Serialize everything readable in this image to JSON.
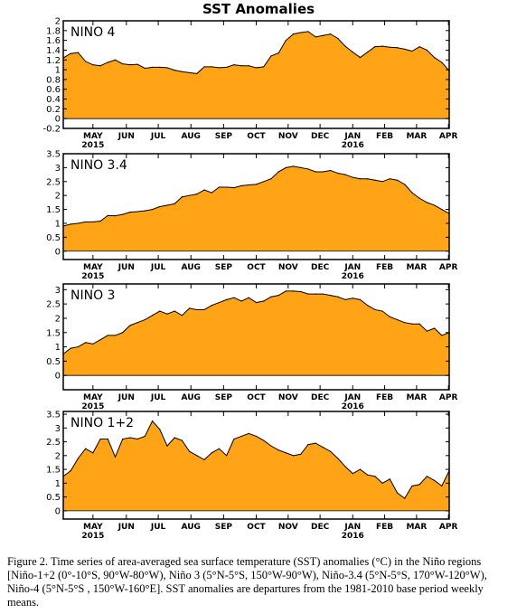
{
  "figure_title": "SST Anomalies",
  "caption": "Figure 2. Time series of area-averaged sea surface temperature (SST) anomalies (°C) in the Niño regions [Niño-1+2 (0°-10°S, 90°W-80°W), Niño 3 (5°N-5°S, 150°W-90°W), Niño-3.4 (5°N-5°S, 170°W-120°W), Niño-4 (5°N-5°S , 150°W-160°E]. SST anomalies are departures from the 1981-2010 base period weekly means.",
  "colors": {
    "fill": "#ffa317",
    "line": "#000000",
    "background": "#ffffff"
  },
  "chart_data": [
    {
      "type": "area",
      "region_label": "NINO 4",
      "ylim": [
        -0.2,
        2
      ],
      "yticks": [
        -0.2,
        0,
        0.2,
        0.4,
        0.6,
        0.8,
        1,
        1.2,
        1.4,
        1.6,
        1.8,
        2
      ],
      "ytick_labels": [
        "-0.2",
        "0",
        "0.2",
        "0.4",
        "0.6",
        "0.8",
        "1",
        "1.2",
        "1.4",
        "1.6",
        "1.8",
        "2"
      ],
      "xlim": [
        0,
        52
      ],
      "month_ticks": [
        {
          "x": 4,
          "label": "MAY",
          "year": "2015"
        },
        {
          "x": 8.5,
          "label": "JUN"
        },
        {
          "x": 12.8,
          "label": "JUL"
        },
        {
          "x": 17.2,
          "label": "AUG"
        },
        {
          "x": 21.6,
          "label": "SEP"
        },
        {
          "x": 26,
          "label": "OCT"
        },
        {
          "x": 30.3,
          "label": "NOV"
        },
        {
          "x": 34.6,
          "label": "DEC"
        },
        {
          "x": 39,
          "label": "JAN",
          "year": "2016"
        },
        {
          "x": 43.3,
          "label": "FEB"
        },
        {
          "x": 47.6,
          "label": "MAR"
        },
        {
          "x": 51.9,
          "label": "APR"
        }
      ],
      "x": [
        0,
        1,
        2,
        3,
        4,
        5,
        6,
        7,
        8,
        9,
        10,
        11,
        12,
        13,
        14,
        15,
        16,
        17,
        18,
        19,
        20,
        21,
        22,
        23,
        24,
        25,
        26,
        27,
        28,
        29,
        30,
        31,
        32,
        33,
        34,
        35,
        36,
        37,
        38,
        39,
        40,
        41,
        42,
        43,
        44,
        45,
        46,
        47,
        48,
        49,
        50,
        51,
        52
      ],
      "values": [
        1.24,
        1.33,
        1.35,
        1.17,
        1.1,
        1.08,
        1.15,
        1.2,
        1.12,
        1.1,
        1.11,
        1.03,
        1.05,
        1.05,
        1.04,
        0.99,
        0.96,
        0.94,
        0.92,
        1.06,
        1.06,
        1.04,
        1.05,
        1.1,
        1.08,
        1.08,
        1.04,
        1.06,
        1.28,
        1.34,
        1.6,
        1.73,
        1.76,
        1.78,
        1.67,
        1.7,
        1.73,
        1.64,
        1.48,
        1.36,
        1.25,
        1.36,
        1.47,
        1.48,
        1.46,
        1.45,
        1.42,
        1.38,
        1.47,
        1.4,
        1.25,
        1.15,
        0.98
      ]
    },
    {
      "type": "area",
      "region_label": "NINO 3.4",
      "ylim": [
        -0.3,
        3.5
      ],
      "yticks": [
        0,
        0.5,
        1,
        1.5,
        2,
        2.5,
        3,
        3.5
      ],
      "ytick_labels": [
        "0",
        "0.5",
        "1",
        "1.5",
        "2",
        "2.5",
        "3",
        "3.5"
      ],
      "xlim": [
        0,
        52
      ],
      "month_ticks": [
        {
          "x": 4,
          "label": "MAY",
          "year": "2015"
        },
        {
          "x": 8.5,
          "label": "JUN"
        },
        {
          "x": 12.8,
          "label": "JUL"
        },
        {
          "x": 17.2,
          "label": "AUG"
        },
        {
          "x": 21.6,
          "label": "SEP"
        },
        {
          "x": 26,
          "label": "OCT"
        },
        {
          "x": 30.3,
          "label": "NOV"
        },
        {
          "x": 34.6,
          "label": "DEC"
        },
        {
          "x": 39,
          "label": "JAN",
          "year": "2016"
        },
        {
          "x": 43.3,
          "label": "FEB"
        },
        {
          "x": 47.6,
          "label": "MAR"
        },
        {
          "x": 51.9,
          "label": "APR"
        }
      ],
      "x": [
        0,
        1,
        2,
        3,
        4,
        5,
        6,
        7,
        8,
        9,
        10,
        11,
        12,
        13,
        14,
        15,
        16,
        17,
        18,
        19,
        20,
        21,
        22,
        23,
        24,
        25,
        26,
        27,
        28,
        29,
        30,
        31,
        32,
        33,
        34,
        35,
        36,
        37,
        38,
        39,
        40,
        41,
        42,
        43,
        44,
        45,
        46,
        47,
        48,
        49,
        50,
        51,
        52
      ],
      "values": [
        0.9,
        0.97,
        1.0,
        1.05,
        1.05,
        1.08,
        1.28,
        1.27,
        1.32,
        1.4,
        1.42,
        1.45,
        1.5,
        1.6,
        1.65,
        1.7,
        1.95,
        2.0,
        2.05,
        2.2,
        2.1,
        2.3,
        2.3,
        2.28,
        2.35,
        2.38,
        2.4,
        2.5,
        2.6,
        2.85,
        3.0,
        3.05,
        3.0,
        2.95,
        2.85,
        2.85,
        2.9,
        2.8,
        2.75,
        2.65,
        2.6,
        2.6,
        2.55,
        2.5,
        2.6,
        2.55,
        2.4,
        2.1,
        1.9,
        1.75,
        1.65,
        1.5,
        1.35
      ]
    },
    {
      "type": "area",
      "region_label": "NINO 3",
      "ylim": [
        -0.5,
        3.2
      ],
      "yticks": [
        0,
        0.5,
        1,
        1.5,
        2,
        2.5,
        3
      ],
      "ytick_labels": [
        "0",
        "0.5",
        "1",
        "1.5",
        "2",
        "2.5",
        "3"
      ],
      "xlim": [
        0,
        52
      ],
      "month_ticks": [
        {
          "x": 4,
          "label": "MAY",
          "year": "2015"
        },
        {
          "x": 8.5,
          "label": "JUN"
        },
        {
          "x": 12.8,
          "label": "JUL"
        },
        {
          "x": 17.2,
          "label": "AUG"
        },
        {
          "x": 21.6,
          "label": "SEP"
        },
        {
          "x": 26,
          "label": "OCT"
        },
        {
          "x": 30.3,
          "label": "NOV"
        },
        {
          "x": 34.6,
          "label": "DEC"
        },
        {
          "x": 39,
          "label": "JAN",
          "year": "2016"
        },
        {
          "x": 43.3,
          "label": "FEB"
        },
        {
          "x": 47.6,
          "label": "MAR"
        },
        {
          "x": 51.9,
          "label": "APR"
        }
      ],
      "x": [
        0,
        1,
        2,
        3,
        4,
        5,
        6,
        7,
        8,
        9,
        10,
        11,
        12,
        13,
        14,
        15,
        16,
        17,
        18,
        19,
        20,
        21,
        22,
        23,
        24,
        25,
        26,
        27,
        28,
        29,
        30,
        31,
        32,
        33,
        34,
        35,
        36,
        37,
        38,
        39,
        40,
        41,
        42,
        43,
        44,
        45,
        46,
        47,
        48,
        49,
        50,
        51,
        52
      ],
      "values": [
        0.75,
        0.95,
        1.0,
        1.15,
        1.1,
        1.25,
        1.4,
        1.4,
        1.5,
        1.75,
        1.85,
        1.95,
        2.1,
        2.25,
        2.15,
        2.25,
        2.1,
        2.35,
        2.3,
        2.3,
        2.45,
        2.55,
        2.65,
        2.72,
        2.6,
        2.72,
        2.55,
        2.6,
        2.75,
        2.8,
        2.95,
        2.95,
        2.93,
        2.85,
        2.85,
        2.85,
        2.8,
        2.75,
        2.65,
        2.7,
        2.65,
        2.45,
        2.3,
        2.25,
        2.05,
        1.95,
        1.85,
        1.8,
        1.8,
        1.55,
        1.65,
        1.4,
        1.5
      ]
    },
    {
      "type": "area",
      "region_label": "NINO 1+2",
      "ylim": [
        -0.3,
        3.6
      ],
      "yticks": [
        0,
        0.5,
        1,
        1.5,
        2,
        2.5,
        3,
        3.5
      ],
      "ytick_labels": [
        "0",
        "0.5",
        "1",
        "1.5",
        "2",
        "2.5",
        "3",
        "3.5"
      ],
      "xlim": [
        0,
        52
      ],
      "month_ticks": [
        {
          "x": 4,
          "label": "MAY",
          "year": "2015"
        },
        {
          "x": 8.5,
          "label": "JUN"
        },
        {
          "x": 12.8,
          "label": "JUL"
        },
        {
          "x": 17.2,
          "label": "AUG"
        },
        {
          "x": 21.6,
          "label": "SEP"
        },
        {
          "x": 26,
          "label": "OCT"
        },
        {
          "x": 30.3,
          "label": "NOV"
        },
        {
          "x": 34.6,
          "label": "DEC"
        },
        {
          "x": 39,
          "label": "JAN",
          "year": "2016"
        },
        {
          "x": 43.3,
          "label": "FEB"
        },
        {
          "x": 47.6,
          "label": "MAR"
        },
        {
          "x": 51.9,
          "label": "APR"
        }
      ],
      "x": [
        0,
        1,
        2,
        3,
        4,
        5,
        6,
        7,
        8,
        9,
        10,
        11,
        12,
        13,
        14,
        15,
        16,
        17,
        18,
        19,
        20,
        21,
        22,
        23,
        24,
        25,
        26,
        27,
        28,
        29,
        30,
        31,
        32,
        33,
        34,
        35,
        36,
        37,
        38,
        39,
        40,
        41,
        42,
        43,
        44,
        45,
        46,
        47,
        48,
        49,
        50,
        51,
        52
      ],
      "values": [
        1.25,
        1.45,
        1.9,
        2.25,
        2.1,
        2.6,
        2.6,
        1.95,
        2.6,
        2.65,
        2.6,
        2.7,
        3.25,
        2.95,
        2.35,
        2.65,
        2.55,
        2.15,
        2.0,
        1.85,
        2.1,
        2.25,
        2.0,
        2.6,
        2.7,
        2.8,
        2.7,
        2.55,
        2.35,
        2.2,
        2.1,
        2.0,
        2.05,
        2.4,
        2.45,
        2.3,
        2.15,
        1.9,
        1.6,
        1.35,
        1.5,
        1.3,
        1.25,
        1.0,
        1.15,
        0.65,
        0.45,
        0.9,
        0.95,
        1.25,
        1.1,
        0.9,
        1.45
      ]
    }
  ]
}
